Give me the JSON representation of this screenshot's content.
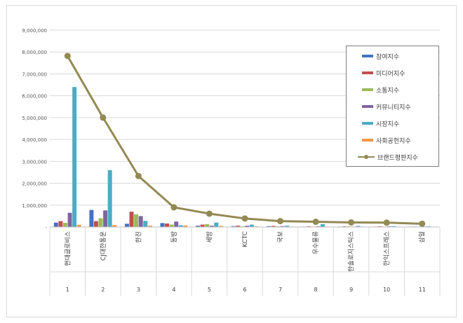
{
  "chart_data": {
    "type": "bar",
    "title": "",
    "xlabel": "",
    "ylabel": "",
    "ylim": [
      0,
      9000000
    ],
    "y_ticks": [
      "-",
      "1,000,000",
      "2,000,000",
      "3,000,000",
      "4,000,000",
      "5,000,000",
      "6,000,000",
      "7,000,000",
      "8,000,000",
      "9,000,000"
    ],
    "grid": true,
    "legend_position": "top-right",
    "categories": [
      {
        "name": "현대글로비스",
        "rank": "1"
      },
      {
        "name": "CJ대한통운",
        "rank": "2"
      },
      {
        "name": "한진",
        "rank": "3"
      },
      {
        "name": "동방",
        "rank": "4"
      },
      {
        "name": "세방",
        "rank": "5"
      },
      {
        "name": "KCTC",
        "rank": "6"
      },
      {
        "name": "국보",
        "rank": "7"
      },
      {
        "name": "우수물류",
        "rank": "8"
      },
      {
        "name": "한솔로지스틱스",
        "rank": "9"
      },
      {
        "name": "한익스프레스",
        "rank": "10"
      },
      {
        "name": "삼일",
        "rank": "11"
      }
    ],
    "series": [
      {
        "name": "참여지수",
        "type": "bar",
        "color": "#4472c4",
        "values": [
          200000,
          780000,
          150000,
          180000,
          60000,
          40000,
          40000,
          20000,
          20000,
          20000,
          20000
        ]
      },
      {
        "name": "미디어지수",
        "type": "bar",
        "color": "#c0504d",
        "values": [
          270000,
          270000,
          700000,
          160000,
          110000,
          60000,
          50000,
          30000,
          30000,
          30000,
          20000
        ]
      },
      {
        "name": "소통지수",
        "type": "bar",
        "color": "#9bbb59",
        "values": [
          190000,
          400000,
          580000,
          110000,
          130000,
          30000,
          30000,
          20000,
          30000,
          20000,
          20000
        ]
      },
      {
        "name": "커뮤니티지수",
        "type": "bar",
        "color": "#8064a2",
        "values": [
          650000,
          760000,
          500000,
          250000,
          60000,
          60000,
          40000,
          30000,
          20000,
          30000,
          20000
        ]
      },
      {
        "name": "시장지수",
        "type": "bar",
        "color": "#4bacc6",
        "values": [
          6400000,
          2600000,
          280000,
          80000,
          200000,
          110000,
          60000,
          130000,
          50000,
          40000,
          30000
        ]
      },
      {
        "name": "사회공헌지수",
        "type": "bar",
        "color": "#f79646",
        "values": [
          100000,
          90000,
          60000,
          70000,
          50000,
          30000,
          20000,
          20000,
          20000,
          20000,
          10000
        ]
      },
      {
        "name": "브랜드평판지수",
        "type": "line",
        "color": "#938953",
        "values": [
          7820000,
          5000000,
          2330000,
          900000,
          610000,
          390000,
          270000,
          240000,
          210000,
          200000,
          150000
        ]
      }
    ]
  }
}
